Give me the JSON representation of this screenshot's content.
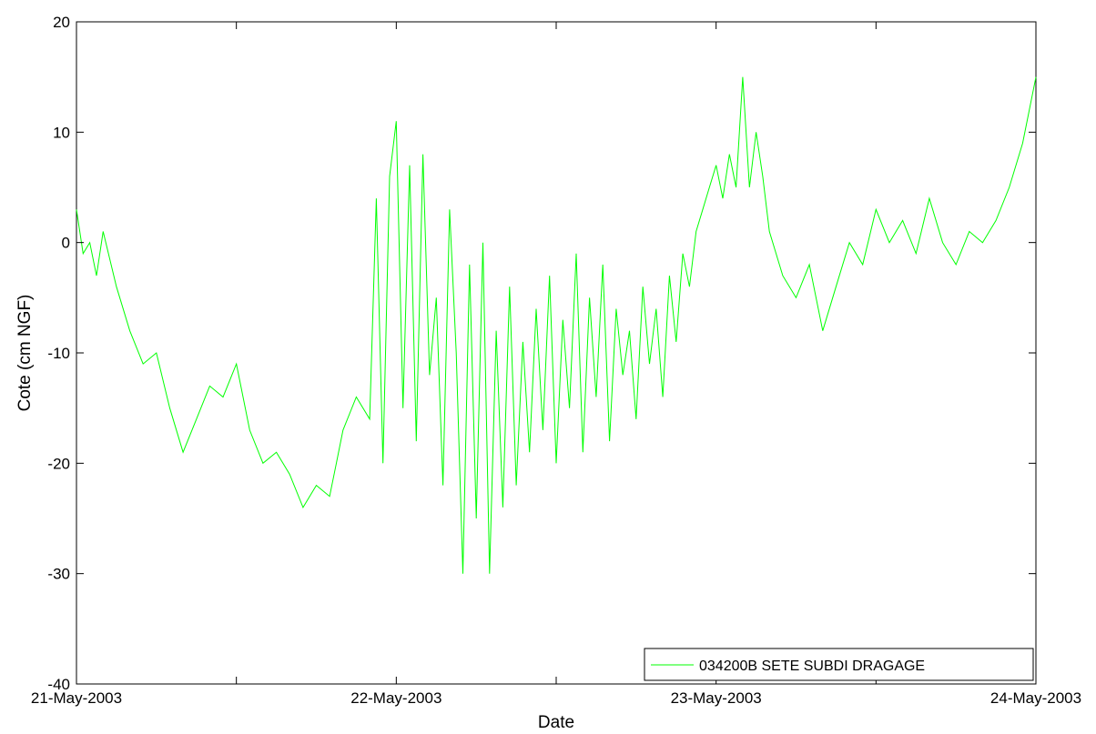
{
  "chart_data": {
    "type": "line",
    "title": "",
    "xlabel": "Date",
    "ylabel": "Cote (cm NGF)",
    "xlim": [
      "21-May-2003 00:00",
      "24-May-2003 00:00"
    ],
    "ylim": [
      -40,
      20
    ],
    "xticks": [
      {
        "value": "21-May-2003 00:00",
        "label": "21-May-2003"
      },
      {
        "value": "21-May-2003 12:00",
        "label": ""
      },
      {
        "value": "22-May-2003 00:00",
        "label": "22-May-2003"
      },
      {
        "value": "22-May-2003 12:00",
        "label": ""
      },
      {
        "value": "23-May-2003 00:00",
        "label": "23-May-2003"
      },
      {
        "value": "23-May-2003 12:00",
        "label": ""
      },
      {
        "value": "24-May-2003 00:00",
        "label": "24-May-2003"
      }
    ],
    "yticks": [
      -40,
      -30,
      -20,
      -10,
      0,
      10,
      20
    ],
    "grid": false,
    "legend_position": "bottom-right",
    "series": [
      {
        "name": "034200B SETE SUBDI DRAGAGE",
        "color": "#00ff00",
        "x": [
          "21-May-2003 00:00",
          "21-May-2003 00:30",
          "21-May-2003 01:00",
          "21-May-2003 01:30",
          "21-May-2003 02:00",
          "21-May-2003 03:00",
          "21-May-2003 04:00",
          "21-May-2003 05:00",
          "21-May-2003 06:00",
          "21-May-2003 07:00",
          "21-May-2003 08:00",
          "21-May-2003 09:00",
          "21-May-2003 10:00",
          "21-May-2003 11:00",
          "21-May-2003 12:00",
          "21-May-2003 13:00",
          "21-May-2003 14:00",
          "21-May-2003 15:00",
          "21-May-2003 16:00",
          "21-May-2003 17:00",
          "21-May-2003 18:00",
          "21-May-2003 19:00",
          "21-May-2003 19:30",
          "21-May-2003 20:00",
          "21-May-2003 21:00",
          "21-May-2003 22:00",
          "21-May-2003 22:30",
          "21-May-2003 23:00",
          "21-May-2003 23:30",
          "22-May-2003 00:00",
          "22-May-2003 00:30",
          "22-May-2003 01:00",
          "22-May-2003 01:30",
          "22-May-2003 02:00",
          "22-May-2003 02:30",
          "22-May-2003 03:00",
          "22-May-2003 03:30",
          "22-May-2003 04:00",
          "22-May-2003 04:30",
          "22-May-2003 05:00",
          "22-May-2003 05:30",
          "22-May-2003 06:00",
          "22-May-2003 06:30",
          "22-May-2003 07:00",
          "22-May-2003 07:30",
          "22-May-2003 08:00",
          "22-May-2003 08:30",
          "22-May-2003 09:00",
          "22-May-2003 09:30",
          "22-May-2003 10:00",
          "22-May-2003 10:30",
          "22-May-2003 11:00",
          "22-May-2003 11:30",
          "22-May-2003 12:00",
          "22-May-2003 12:30",
          "22-May-2003 13:00",
          "22-May-2003 13:30",
          "22-May-2003 14:00",
          "22-May-2003 14:30",
          "22-May-2003 15:00",
          "22-May-2003 15:30",
          "22-May-2003 16:00",
          "22-May-2003 16:30",
          "22-May-2003 17:00",
          "22-May-2003 17:30",
          "22-May-2003 18:00",
          "22-May-2003 18:30",
          "22-May-2003 19:00",
          "22-May-2003 19:30",
          "22-May-2003 20:00",
          "22-May-2003 20:30",
          "22-May-2003 21:00",
          "22-May-2003 21:30",
          "22-May-2003 22:00",
          "22-May-2003 22:30",
          "22-May-2003 23:00",
          "22-May-2003 23:30",
          "23-May-2003 00:00",
          "23-May-2003 00:30",
          "23-May-2003 01:00",
          "23-May-2003 01:30",
          "23-May-2003 02:00",
          "23-May-2003 02:30",
          "23-May-2003 03:00",
          "23-May-2003 03:30",
          "23-May-2003 04:00",
          "23-May-2003 05:00",
          "23-May-2003 06:00",
          "23-May-2003 07:00",
          "23-May-2003 08:00",
          "23-May-2003 09:00",
          "23-May-2003 10:00",
          "23-May-2003 11:00",
          "23-May-2003 12:00",
          "23-May-2003 13:00",
          "23-May-2003 14:00",
          "23-May-2003 15:00",
          "23-May-2003 16:00",
          "23-May-2003 17:00",
          "23-May-2003 18:00",
          "23-May-2003 19:00",
          "23-May-2003 20:00",
          "23-May-2003 21:00",
          "23-May-2003 22:00",
          "23-May-2003 23:00",
          "24-May-2003 00:00"
        ],
        "y": [
          3,
          -1,
          0,
          -3,
          1,
          -4,
          -8,
          -11,
          -10,
          -15,
          -19,
          -16,
          -13,
          -14,
          -11,
          -17,
          -20,
          -19,
          -21,
          -24,
          -22,
          -23,
          -20,
          -17,
          -14,
          -16,
          4,
          -20,
          6,
          11,
          -15,
          7,
          -18,
          8,
          -12,
          -5,
          -22,
          3,
          -10,
          -30,
          -2,
          -25,
          0,
          -30,
          -8,
          -24,
          -4,
          -22,
          -9,
          -19,
          -6,
          -17,
          -3,
          -20,
          -7,
          -15,
          -1,
          -19,
          -5,
          -14,
          -2,
          -18,
          -6,
          -12,
          -8,
          -16,
          -4,
          -11,
          -6,
          -14,
          -3,
          -9,
          -1,
          -4,
          1,
          3,
          5,
          7,
          4,
          8,
          5,
          15,
          5,
          10,
          6,
          1,
          -3,
          -5,
          -2,
          -8,
          -4,
          0,
          -2,
          3,
          0,
          2,
          -1,
          4,
          0,
          -2,
          1,
          0,
          2,
          5,
          9,
          15
        ]
      }
    ]
  }
}
